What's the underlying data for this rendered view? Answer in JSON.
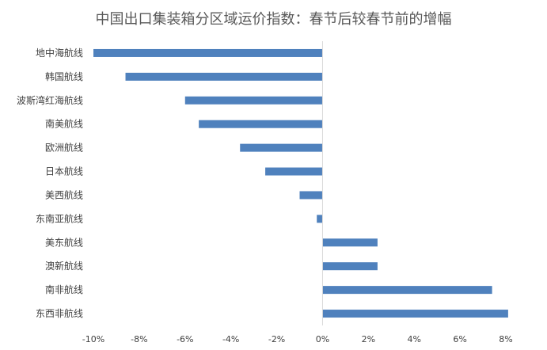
{
  "chart_data": {
    "type": "bar",
    "orientation": "horizontal",
    "title": "中国出口集装箱分区域运价指数：春节后较春节前的增幅",
    "categories": [
      "地中海航线",
      "韩国航线",
      "波斯湾红海航线",
      "南美航线",
      "欧洲航线",
      "日本航线",
      "美西航线",
      "东南亚航线",
      "美东航线",
      "澳新航线",
      "南非航线",
      "东西非航线"
    ],
    "values": [
      -10.0,
      -8.6,
      -6.0,
      -5.4,
      -3.6,
      -2.5,
      -1.0,
      -0.25,
      2.4,
      2.4,
      7.4,
      8.1
    ],
    "xlim": [
      -10,
      8
    ],
    "xticks": [
      -10,
      -8,
      -6,
      -4,
      -2,
      0,
      2,
      4,
      6,
      8
    ],
    "xtick_labels": [
      "-10%",
      "-8%",
      "-6%",
      "-4%",
      "-2%",
      "0%",
      "2%",
      "4%",
      "6%",
      "8%"
    ],
    "bar_color": "#4f81bd",
    "axis_color": "#d9d9d9",
    "grid": false,
    "legend": false
  }
}
